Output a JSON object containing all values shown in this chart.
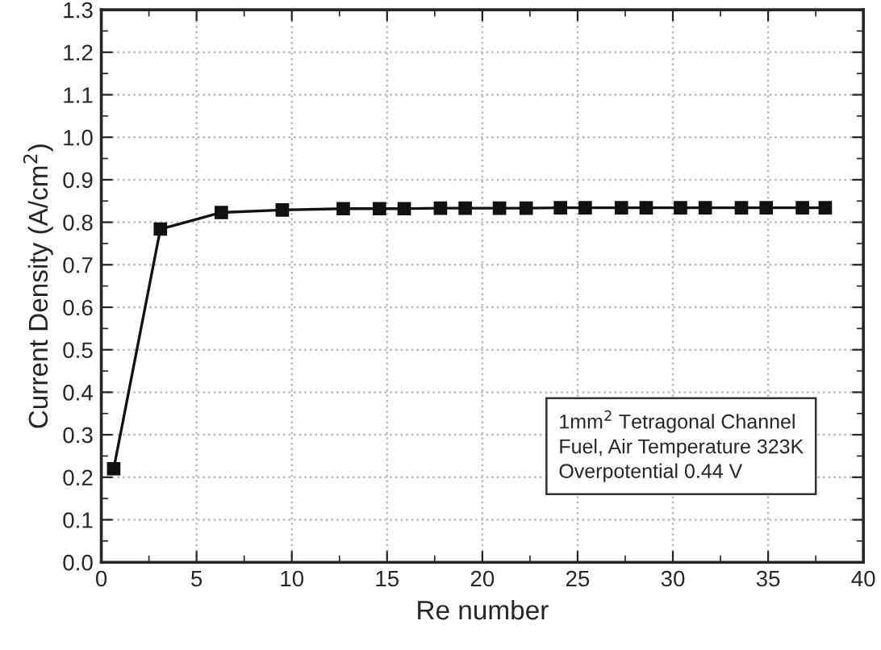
{
  "chart_data": {
    "type": "line",
    "xlabel": "Re number",
    "ylabel": "Current Density (A/cm$^{2}$)",
    "x": [
      0.65,
      3.1,
      6.3,
      9.5,
      12.7,
      14.6,
      15.9,
      17.8,
      19.1,
      20.9,
      22.3,
      24.1,
      25.4,
      27.3,
      28.6,
      30.4,
      31.7,
      33.6,
      34.9,
      36.8,
      38.0
    ],
    "series": [
      {
        "color": "#111111",
        "values": [
          0.22,
          0.784,
          0.823,
          0.829,
          0.832,
          0.832,
          0.832,
          0.833,
          0.833,
          0.833,
          0.833,
          0.834,
          0.834,
          0.834,
          0.834,
          0.834,
          0.834,
          0.834,
          0.834,
          0.834,
          0.834
        ]
      }
    ],
    "marker": "square",
    "line_style": "solid",
    "grid": true,
    "legend": false,
    "xlim": [
      0,
      40
    ],
    "xticks": [
      0,
      5,
      10,
      15,
      20,
      25,
      30,
      35,
      40
    ],
    "ylim": [
      0,
      1.3
    ],
    "yticks": [
      {
        "value": 0,
        "label": "0.0"
      },
      {
        "value": 0.1,
        "label": "0.1"
      },
      {
        "value": 0.2,
        "label": "0.2"
      },
      {
        "value": 0.3,
        "label": "0.3"
      },
      {
        "value": 0.4,
        "label": "0.4"
      },
      {
        "value": 0.5,
        "label": "0.5"
      },
      {
        "value": 0.6,
        "label": "0.6"
      },
      {
        "value": 0.7,
        "label": "0.7"
      },
      {
        "value": 0.8,
        "label": "0.8"
      },
      {
        "value": 0.9,
        "label": "0.9"
      },
      {
        "value": 1.0,
        "label": "1.0"
      },
      {
        "value": 1.1,
        "label": "1.1"
      },
      {
        "value": 1.2,
        "label": "1.2"
      },
      {
        "value": 1.3,
        "label": "1.3"
      }
    ],
    "annotations": [
      "1mm$^{2}$ Tetragonal Channel\nFuel, Air Temperature 323K\nOverpotential 0.44 V"
    ]
  }
}
